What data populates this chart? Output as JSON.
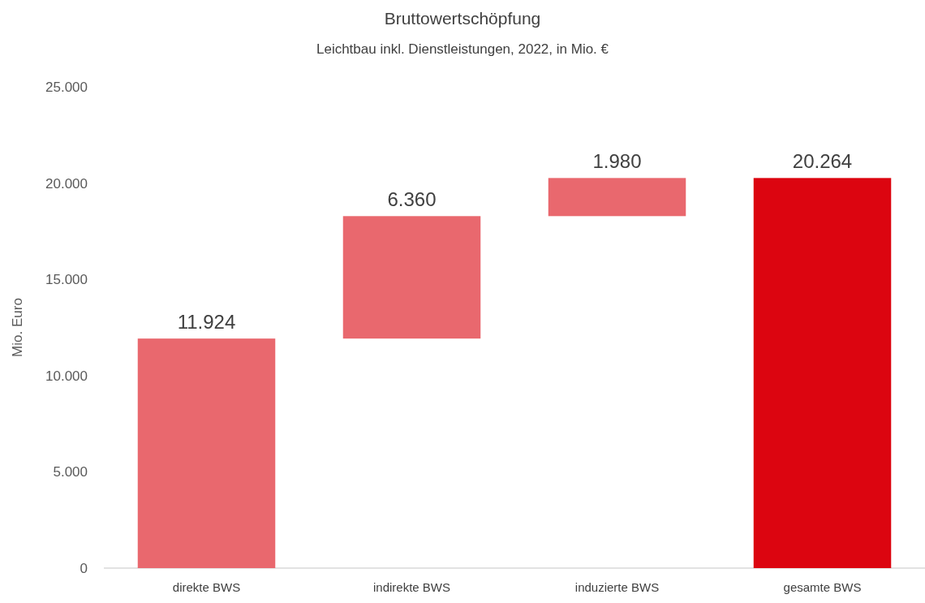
{
  "chart_data": {
    "type": "bar",
    "title": "Bruttowertschöpfung",
    "subtitle": "Leichtbau inkl. Dienstleistungen, 2022, in Mio. €",
    "ylabel": "Mio. Euro",
    "categories": [
      "direkte BWS",
      "indirekte BWS",
      "induzierte BWS",
      "gesamte BWS"
    ],
    "values": [
      11924,
      6360,
      1980,
      20264
    ],
    "base": [
      0,
      11924,
      18284,
      0
    ],
    "colors": [
      "#e9686e",
      "#e9686e",
      "#e9686e",
      "#dc0510"
    ],
    "ylim": [
      0,
      25000
    ],
    "yticks": [
      {
        "value": 0,
        "label": "0"
      },
      {
        "value": 5000,
        "label": "5.000"
      },
      {
        "value": 10000,
        "label": "10.000"
      },
      {
        "value": 15000,
        "label": "15.000"
      },
      {
        "value": 20000,
        "label": "20.000"
      },
      {
        "value": 25000,
        "label": "25.000"
      }
    ],
    "value_labels": [
      "11.924",
      "6.360",
      "1.980",
      "20.264"
    ]
  }
}
